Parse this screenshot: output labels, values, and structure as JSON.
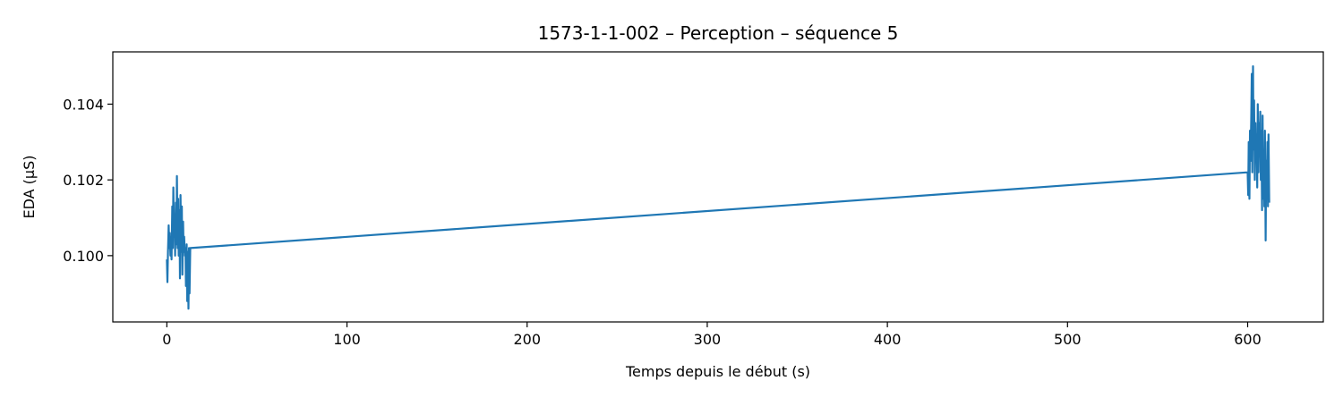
{
  "chart_data": {
    "type": "line",
    "title": "1573-1-1-002 – Perception – séquence 5",
    "xlabel": "Temps depuis le début (s)",
    "ylabel": "EDA (µS)",
    "xlim": [
      -30,
      642
    ],
    "ylim": [
      0.09825,
      0.10538
    ],
    "x_ticks": [
      0,
      100,
      200,
      300,
      400,
      500,
      600
    ],
    "y_ticks": [
      0.1,
      0.102,
      0.104
    ],
    "y_tick_labels": [
      "0.100",
      "0.102",
      "0.104"
    ],
    "grid": false,
    "legend": "none",
    "series": [
      {
        "color": "#1f77b4",
        "x": [
          0.0,
          0.3,
          0.6,
          1.0,
          1.3,
          1.6,
          2.0,
          2.3,
          2.6,
          3.0,
          3.3,
          3.6,
          4.0,
          4.3,
          4.6,
          5.0,
          5.3,
          5.6,
          6.0,
          6.3,
          6.6,
          7.0,
          7.3,
          7.6,
          8.0,
          8.3,
          8.6,
          9.0,
          9.3,
          9.6,
          10.0,
          10.3,
          10.6,
          11.0,
          11.3,
          11.6,
          12.0,
          12.3,
          12.6,
          13.0,
          600.0,
          600.3,
          600.6,
          601.0,
          601.3,
          601.6,
          602.0,
          602.3,
          602.6,
          603.0,
          603.3,
          603.6,
          604.0,
          604.3,
          604.6,
          605.0,
          605.3,
          605.6,
          606.0,
          606.3,
          606.6,
          607.0,
          607.3,
          607.6,
          608.0,
          608.3,
          608.6,
          609.0,
          609.3,
          609.6,
          610.0,
          610.3,
          610.6,
          611.0,
          611.3,
          611.6,
          612.0
        ],
        "y": [
          0.0999,
          0.0993,
          0.1001,
          0.1008,
          0.1002,
          0.1006,
          0.1,
          0.1004,
          0.0999,
          0.1013,
          0.1002,
          0.1018,
          0.1005,
          0.101,
          0.1,
          0.1014,
          0.1003,
          0.1021,
          0.1002,
          0.1015,
          0.1,
          0.1012,
          0.0994,
          0.1016,
          0.1001,
          0.1013,
          0.0995,
          0.1009,
          0.1001,
          0.1005,
          0.1,
          0.1002,
          0.0992,
          0.1003,
          0.0988,
          0.1001,
          0.0986,
          0.1002,
          0.099,
          0.1002,
          0.1022,
          0.1016,
          0.103,
          0.1015,
          0.1033,
          0.1025,
          0.1036,
          0.1048,
          0.1022,
          0.105,
          0.1028,
          0.1041,
          0.102,
          0.1035,
          0.1025,
          0.1032,
          0.1018,
          0.104,
          0.1022,
          0.1035,
          0.1028,
          0.1038,
          0.102,
          0.1033,
          0.1012,
          0.1037,
          0.1015,
          0.1028,
          0.1013,
          0.1033,
          0.1004,
          0.1025,
          0.1015,
          0.103,
          0.1013,
          0.1032,
          0.1014
        ]
      }
    ]
  }
}
